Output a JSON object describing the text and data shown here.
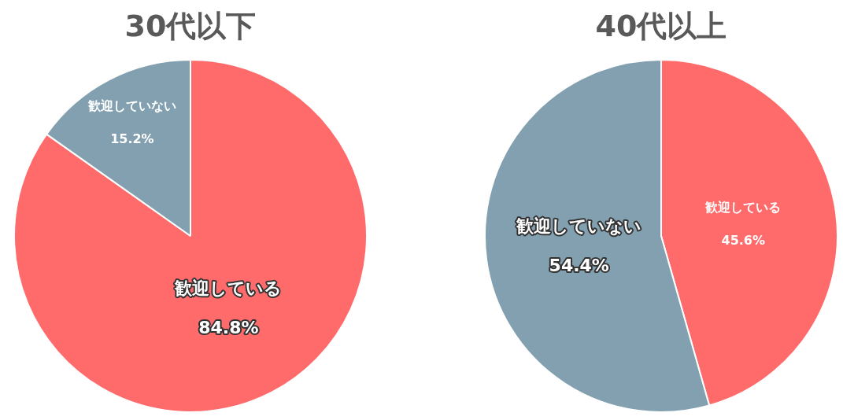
{
  "chart_data": [
    {
      "type": "pie",
      "title": "30代以下",
      "categories": [
        "歓迎している",
        "歓迎していない"
      ],
      "values": [
        84.8,
        15.2
      ],
      "colors": [
        "#ff6b6b",
        "#82a0b0"
      ],
      "value_labels": [
        "84.8%",
        "15.2%"
      ],
      "legend": false
    },
    {
      "type": "pie",
      "title": "40代以上",
      "categories": [
        "歓迎している",
        "歓迎していない"
      ],
      "values": [
        45.6,
        54.4
      ],
      "colors": [
        "#ff6b6b",
        "#82a0b0"
      ],
      "value_labels": [
        "45.6%",
        "54.4%"
      ],
      "legend": false
    }
  ]
}
